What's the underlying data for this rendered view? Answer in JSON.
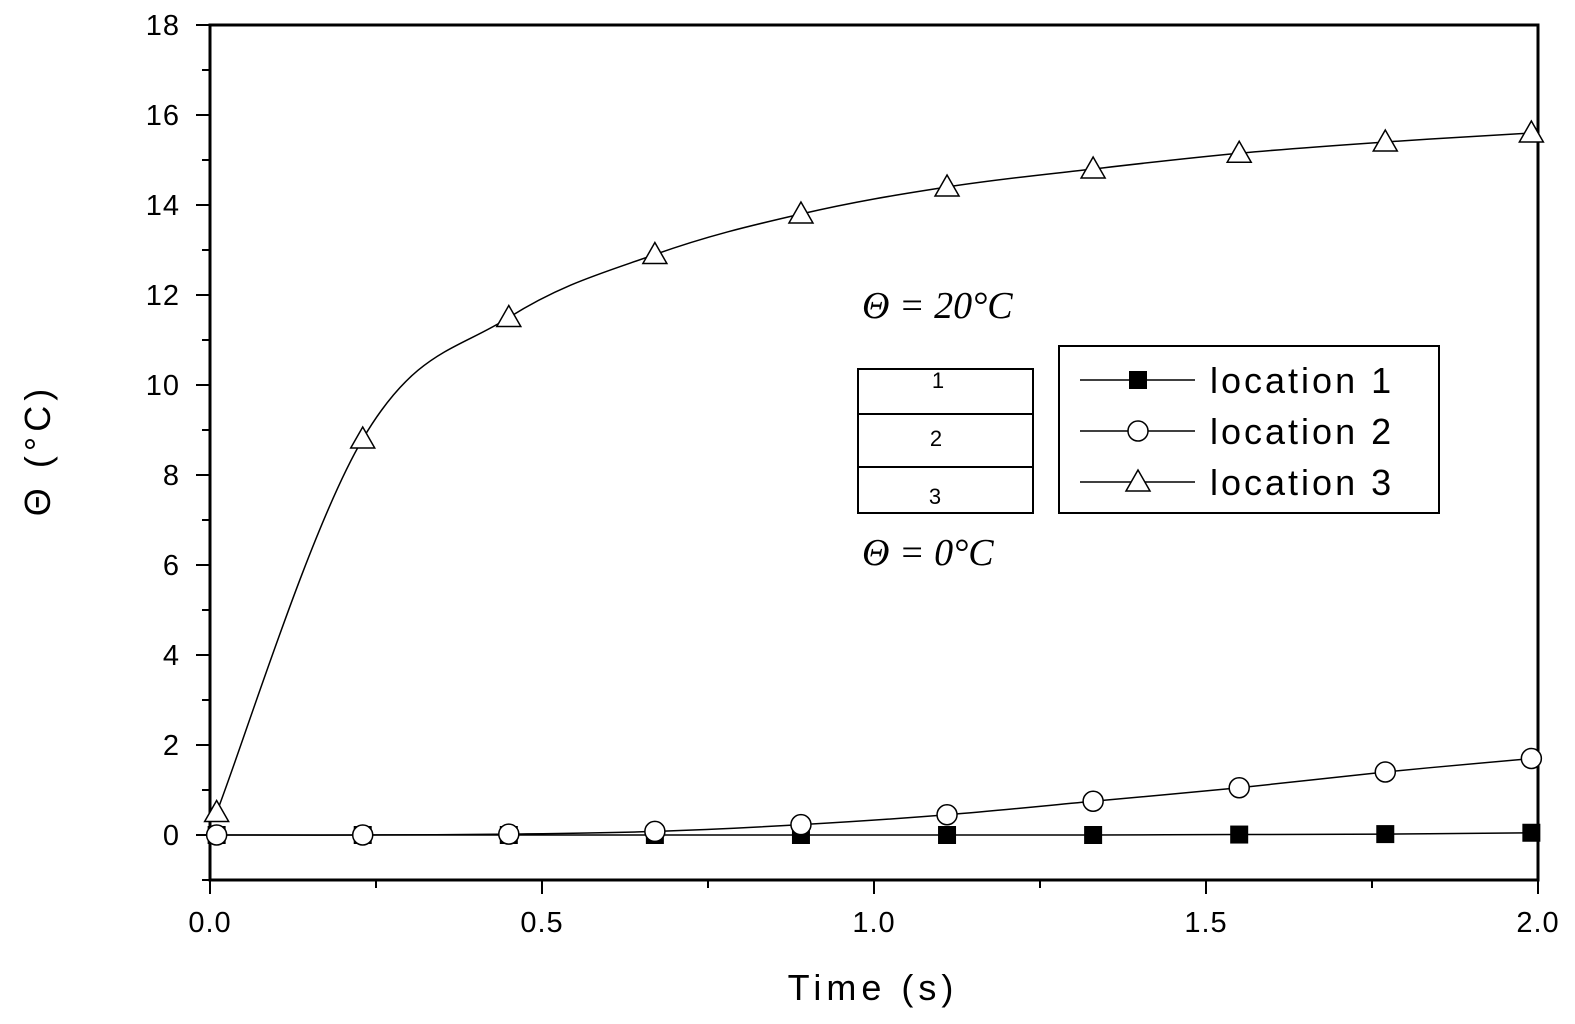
{
  "chart_data": {
    "type": "line",
    "xlabel": "Time (s)",
    "ylabel": "Θ (°C)",
    "xlim": [
      0.0,
      2.0
    ],
    "ylim": [
      -1,
      18
    ],
    "xticks": [
      "0.0",
      "0.5",
      "1.0",
      "1.5",
      "2.0"
    ],
    "yticks": [
      "0",
      "2",
      "4",
      "6",
      "8",
      "10",
      "12",
      "14",
      "16",
      "18"
    ],
    "grid": false,
    "legend_position": "right-center",
    "series": [
      {
        "name": "location 1",
        "marker": "filled-square",
        "x": [
          0.01,
          0.23,
          0.45,
          0.67,
          0.89,
          1.11,
          1.33,
          1.55,
          1.77,
          1.99
        ],
        "y": [
          0.0,
          0.0,
          0.0,
          0.0,
          0.0,
          0.0,
          0.0,
          0.01,
          0.02,
          0.05
        ]
      },
      {
        "name": "location 2",
        "marker": "open-circle",
        "x": [
          0.01,
          0.23,
          0.45,
          0.67,
          0.89,
          1.11,
          1.33,
          1.55,
          1.77,
          1.99
        ],
        "y": [
          0.0,
          0.0,
          0.02,
          0.08,
          0.23,
          0.45,
          0.75,
          1.05,
          1.4,
          1.7
        ]
      },
      {
        "name": "location 3",
        "marker": "open-triangle",
        "x": [
          0.01,
          0.23,
          0.45,
          0.67,
          0.89,
          1.11,
          1.33,
          1.55,
          1.77,
          1.99
        ],
        "y": [
          0.5,
          8.8,
          11.5,
          12.9,
          13.8,
          14.4,
          14.8,
          15.15,
          15.4,
          15.6
        ]
      }
    ],
    "annotations": {
      "top_boundary": "Θ = 20°C",
      "bottom_boundary": "Θ = 0°C",
      "layers": [
        "1",
        "2",
        "3"
      ]
    }
  }
}
